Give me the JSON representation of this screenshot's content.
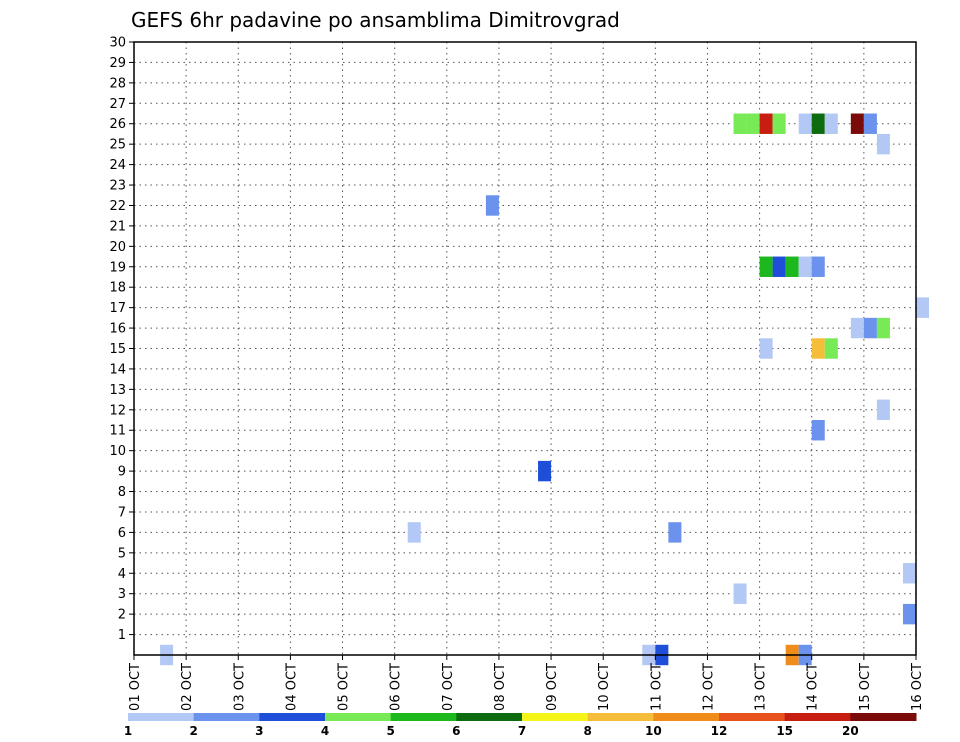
{
  "chart_data": {
    "type": "heatmap",
    "title": "GEFS 6hr padavine po ansamblima Dimitrovgrad",
    "x_tick_labels": [
      "01 OCT",
      "02 OCT",
      "03 OCT",
      "04 OCT",
      "05 OCT",
      "06 OCT",
      "07 OCT",
      "08 OCT",
      "09 OCT",
      "10 OCT",
      "11 OCT",
      "12 OCT",
      "13 OCT",
      "14 OCT",
      "15 OCT",
      "16 OCT"
    ],
    "y_tick_labels": [
      "1",
      "2",
      "3",
      "4",
      "5",
      "6",
      "7",
      "8",
      "9",
      "10",
      "11",
      "12",
      "13",
      "14",
      "15",
      "16",
      "17",
      "18",
      "19",
      "20",
      "21",
      "22",
      "23",
      "24",
      "25",
      "26",
      "27",
      "28",
      "29",
      "30"
    ],
    "xlim": [
      0,
      15
    ],
    "ylim": [
      0,
      30
    ],
    "grid": true,
    "bin_days": 0.25,
    "levels": [
      {
        "label": "1",
        "color": "#b3c8f5"
      },
      {
        "label": "2",
        "color": "#6b93ee"
      },
      {
        "label": "3",
        "color": "#1f4fd9"
      },
      {
        "label": "4",
        "color": "#78ea55"
      },
      {
        "label": "5",
        "color": "#1db81d"
      },
      {
        "label": "6",
        "color": "#0d6b10"
      },
      {
        "label": "7",
        "color": "#f5f51a"
      },
      {
        "label": "8",
        "color": "#f5be3a"
      },
      {
        "label": "10",
        "color": "#f08c1a"
      },
      {
        "label": "12",
        "color": "#e8521f"
      },
      {
        "label": "15",
        "color": "#c81e12"
      },
      {
        "label": "20",
        "color": "#7a0b08"
      }
    ],
    "cells": [
      {
        "x": 0.5,
        "member": 0,
        "level": 0
      },
      {
        "x": 9.75,
        "member": 0,
        "level": 0
      },
      {
        "x": 10.0,
        "member": 0,
        "level": 2
      },
      {
        "x": 12.5,
        "member": 0,
        "level": 8
      },
      {
        "x": 12.75,
        "member": 0,
        "level": 1
      },
      {
        "x": 14.75,
        "member": 2,
        "level": 1
      },
      {
        "x": 11.5,
        "member": 3,
        "level": 0
      },
      {
        "x": 14.75,
        "member": 4,
        "level": 0
      },
      {
        "x": 5.25,
        "member": 6,
        "level": 0
      },
      {
        "x": 10.25,
        "member": 6,
        "level": 1
      },
      {
        "x": 7.75,
        "member": 9,
        "level": 2
      },
      {
        "x": 13.0,
        "member": 11,
        "level": 1
      },
      {
        "x": 14.25,
        "member": 12,
        "level": 0
      },
      {
        "x": 12.0,
        "member": 15,
        "level": 0
      },
      {
        "x": 13.0,
        "member": 15,
        "level": 7
      },
      {
        "x": 13.25,
        "member": 15,
        "level": 3
      },
      {
        "x": 13.75,
        "member": 16,
        "level": 0
      },
      {
        "x": 14.0,
        "member": 16,
        "level": 1
      },
      {
        "x": 14.25,
        "member": 16,
        "level": 3
      },
      {
        "x": 15.0,
        "member": 17,
        "level": 0
      },
      {
        "x": 12.0,
        "member": 19,
        "level": 4
      },
      {
        "x": 12.25,
        "member": 19,
        "level": 2
      },
      {
        "x": 12.5,
        "member": 19,
        "level": 4
      },
      {
        "x": 12.75,
        "member": 19,
        "level": 0
      },
      {
        "x": 13.0,
        "member": 19,
        "level": 1
      },
      {
        "x": 6.75,
        "member": 22,
        "level": 1
      },
      {
        "x": 14.25,
        "member": 25,
        "level": 0
      },
      {
        "x": 11.5,
        "member": 26,
        "level": 3
      },
      {
        "x": 11.75,
        "member": 26,
        "level": 3
      },
      {
        "x": 12.0,
        "member": 26,
        "level": 10
      },
      {
        "x": 12.25,
        "member": 26,
        "level": 3
      },
      {
        "x": 12.75,
        "member": 26,
        "level": 0
      },
      {
        "x": 13.0,
        "member": 26,
        "level": 5
      },
      {
        "x": 13.25,
        "member": 26,
        "level": 0
      },
      {
        "x": 13.75,
        "member": 26,
        "level": 11
      },
      {
        "x": 14.0,
        "member": 26,
        "level": 1
      }
    ]
  }
}
